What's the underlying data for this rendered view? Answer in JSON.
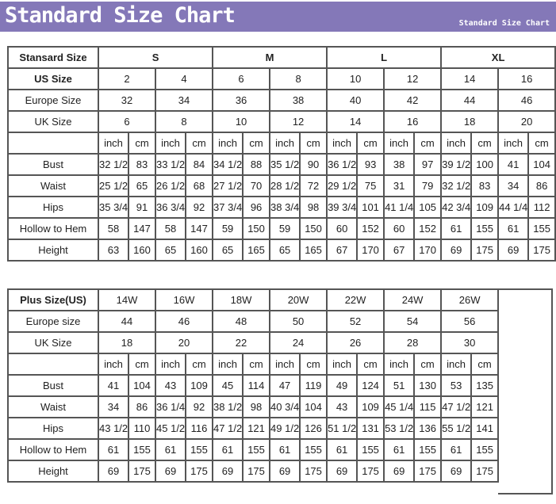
{
  "banner": {
    "title": "Standard Size Chart",
    "subtitle": "Standard Size Chart",
    "color": "#8478b8"
  },
  "units": {
    "inch": "inch",
    "cm": "cm"
  },
  "standard": {
    "header_label": "Stansard Size",
    "groups": [
      "S",
      "M",
      "L",
      "XL"
    ],
    "size_rows": [
      {
        "label": "US Size",
        "bold": true,
        "values": [
          "2",
          "4",
          "6",
          "8",
          "10",
          "12",
          "14",
          "16"
        ]
      },
      {
        "label": "Europe Size",
        "values": [
          "32",
          "34",
          "36",
          "38",
          "40",
          "42",
          "44",
          "46"
        ]
      },
      {
        "label": "UK Size",
        "values": [
          "6",
          "8",
          "10",
          "12",
          "14",
          "16",
          "18",
          "20"
        ]
      }
    ],
    "measurements": [
      {
        "label": "Bust",
        "values": [
          [
            "32 1/2",
            "83"
          ],
          [
            "33 1/2",
            "84"
          ],
          [
            "34 1/2",
            "88"
          ],
          [
            "35 1/2",
            "90"
          ],
          [
            "36 1/2",
            "93"
          ],
          [
            "38",
            "97"
          ],
          [
            "39 1/2",
            "100"
          ],
          [
            "41",
            "104"
          ]
        ]
      },
      {
        "label": "Waist",
        "values": [
          [
            "25 1/2",
            "65"
          ],
          [
            "26 1/2",
            "68"
          ],
          [
            "27 1/2",
            "70"
          ],
          [
            "28 1/2",
            "72"
          ],
          [
            "29 1/2",
            "75"
          ],
          [
            "31",
            "79"
          ],
          [
            "32 1/2",
            "83"
          ],
          [
            "34",
            "86"
          ]
        ]
      },
      {
        "label": "Hips",
        "values": [
          [
            "35 3/4",
            "91"
          ],
          [
            "36 3/4",
            "92"
          ],
          [
            "37 3/4",
            "96"
          ],
          [
            "38 3/4",
            "98"
          ],
          [
            "39 3/4",
            "101"
          ],
          [
            "41 1/4",
            "105"
          ],
          [
            "42 3/4",
            "109"
          ],
          [
            "44 1/4",
            "112"
          ]
        ]
      },
      {
        "label": "Hollow to Hem",
        "values": [
          [
            "58",
            "147"
          ],
          [
            "58",
            "147"
          ],
          [
            "59",
            "150"
          ],
          [
            "59",
            "150"
          ],
          [
            "60",
            "152"
          ],
          [
            "60",
            "152"
          ],
          [
            "61",
            "155"
          ],
          [
            "61",
            "155"
          ]
        ]
      },
      {
        "label": "Height",
        "values": [
          [
            "63",
            "160"
          ],
          [
            "65",
            "160"
          ],
          [
            "65",
            "165"
          ],
          [
            "65",
            "165"
          ],
          [
            "67",
            "170"
          ],
          [
            "67",
            "170"
          ],
          [
            "69",
            "175"
          ],
          [
            "69",
            "175"
          ]
        ]
      }
    ]
  },
  "plus": {
    "size_rows": [
      {
        "label": "Plus Size(US)",
        "bold": true,
        "values": [
          "14W",
          "16W",
          "18W",
          "20W",
          "22W",
          "24W",
          "26W"
        ]
      },
      {
        "label": "Europe size",
        "values": [
          "44",
          "46",
          "48",
          "50",
          "52",
          "54",
          "56"
        ]
      },
      {
        "label": "UK Size",
        "values": [
          "18",
          "20",
          "22",
          "24",
          "26",
          "28",
          "30"
        ]
      }
    ],
    "measurements": [
      {
        "label": "Bust",
        "values": [
          [
            "41",
            "104"
          ],
          [
            "43",
            "109"
          ],
          [
            "45",
            "114"
          ],
          [
            "47",
            "119"
          ],
          [
            "49",
            "124"
          ],
          [
            "51",
            "130"
          ],
          [
            "53",
            "135"
          ]
        ]
      },
      {
        "label": "Waist",
        "values": [
          [
            "34",
            "86"
          ],
          [
            "36 1/4",
            "92"
          ],
          [
            "38 1/2",
            "98"
          ],
          [
            "40 3/4",
            "104"
          ],
          [
            "43",
            "109"
          ],
          [
            "45 1/4",
            "115"
          ],
          [
            "47 1/2",
            "121"
          ]
        ]
      },
      {
        "label": "Hips",
        "values": [
          [
            "43 1/2",
            "110"
          ],
          [
            "45 1/2",
            "116"
          ],
          [
            "47 1/2",
            "121"
          ],
          [
            "49 1/2",
            "126"
          ],
          [
            "51 1/2",
            "131"
          ],
          [
            "53 1/2",
            "136"
          ],
          [
            "55 1/2",
            "141"
          ]
        ]
      },
      {
        "label": "Hollow to Hem",
        "values": [
          [
            "61",
            "155"
          ],
          [
            "61",
            "155"
          ],
          [
            "61",
            "155"
          ],
          [
            "61",
            "155"
          ],
          [
            "61",
            "155"
          ],
          [
            "61",
            "155"
          ],
          [
            "61",
            "155"
          ]
        ]
      },
      {
        "label": "Height",
        "values": [
          [
            "69",
            "175"
          ],
          [
            "69",
            "175"
          ],
          [
            "69",
            "175"
          ],
          [
            "69",
            "175"
          ],
          [
            "69",
            "175"
          ],
          [
            "69",
            "175"
          ],
          [
            "69",
            "175"
          ]
        ]
      }
    ]
  }
}
